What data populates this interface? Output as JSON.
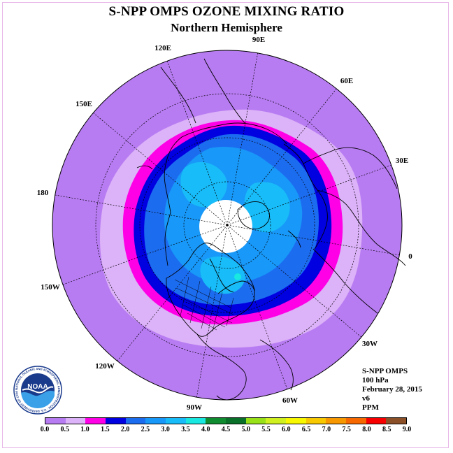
{
  "title": "S-NPP OMPS OZONE MIXING RATIO",
  "subtitle": "Northern Hemisphere",
  "longitude_labels": [
    "90E",
    "60E",
    "30E",
    "0",
    "30W",
    "60W",
    "90W",
    "120W",
    "150W",
    "180",
    "150E",
    "120E"
  ],
  "info": {
    "instrument": "S-NPP OMPS",
    "level": "100 hPa",
    "date": "February 28, 2015",
    "version": "v6",
    "units": "PPM"
  },
  "logo": {
    "text": "NOAA",
    "ring_text": "NATIONAL OCEANIC AND ATMOSPHERIC ADMINISTRATION · U.S. DEPARTMENT OF COMMERCE"
  },
  "colorbar": {
    "colors": [
      "#b87cf2",
      "#dcb2f8",
      "#ff00e6",
      "#0000e0",
      "#1c6cf0",
      "#1898f8",
      "#18bcf8",
      "#18e8e0",
      "#108c30",
      "#087028",
      "#98e018",
      "#d0f020",
      "#f8f800",
      "#f8c800",
      "#f89800",
      "#f86800",
      "#f80000",
      "#8c5028"
    ],
    "ticks": [
      "0.0",
      "0.5",
      "1.0",
      "1.5",
      "2.0",
      "2.5",
      "3.0",
      "3.5",
      "4.0",
      "4.5",
      "5.0",
      "5.5",
      "6.0",
      "6.5",
      "7.0",
      "7.5",
      "8.0",
      "8.5",
      "9.0"
    ]
  }
}
